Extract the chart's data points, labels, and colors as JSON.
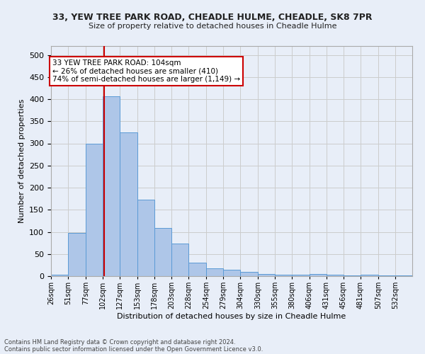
{
  "title1": "33, YEW TREE PARK ROAD, CHEADLE HULME, CHEADLE, SK8 7PR",
  "title2": "Size of property relative to detached houses in Cheadle Hulme",
  "xlabel": "Distribution of detached houses by size in Cheadle Hulme",
  "ylabel": "Number of detached properties",
  "bin_labels": [
    "26sqm",
    "51sqm",
    "77sqm",
    "102sqm",
    "127sqm",
    "153sqm",
    "178sqm",
    "203sqm",
    "228sqm",
    "254sqm",
    "279sqm",
    "304sqm",
    "330sqm",
    "355sqm",
    "380sqm",
    "406sqm",
    "431sqm",
    "456sqm",
    "481sqm",
    "507sqm",
    "532sqm"
  ],
  "bin_edges": [
    26,
    51,
    77,
    102,
    127,
    153,
    178,
    203,
    228,
    254,
    279,
    304,
    330,
    355,
    380,
    406,
    431,
    456,
    481,
    507,
    532,
    557
  ],
  "bar_heights": [
    4,
    97,
    300,
    407,
    325,
    173,
    109,
    74,
    30,
    17,
    15,
    9,
    5,
    3,
    3,
    5,
    3,
    1,
    3,
    1,
    1
  ],
  "bar_color": "#aec6e8",
  "bar_edge_color": "#5b9bd5",
  "property_size": 104,
  "vline_color": "#cc0000",
  "annotation_line1": "33 YEW TREE PARK ROAD: 104sqm",
  "annotation_line2": "← 26% of detached houses are smaller (410)",
  "annotation_line3": "74% of semi-detached houses are larger (1,149) →",
  "annotation_box_color": "#ffffff",
  "annotation_box_edge": "#cc0000",
  "footnote1": "Contains HM Land Registry data © Crown copyright and database right 2024.",
  "footnote2": "Contains public sector information licensed under the Open Government Licence v3.0.",
  "ylim": [
    0,
    520
  ],
  "yticks": [
    0,
    50,
    100,
    150,
    200,
    250,
    300,
    350,
    400,
    450,
    500
  ],
  "grid_color": "#cccccc",
  "background_color": "#e8eef8"
}
